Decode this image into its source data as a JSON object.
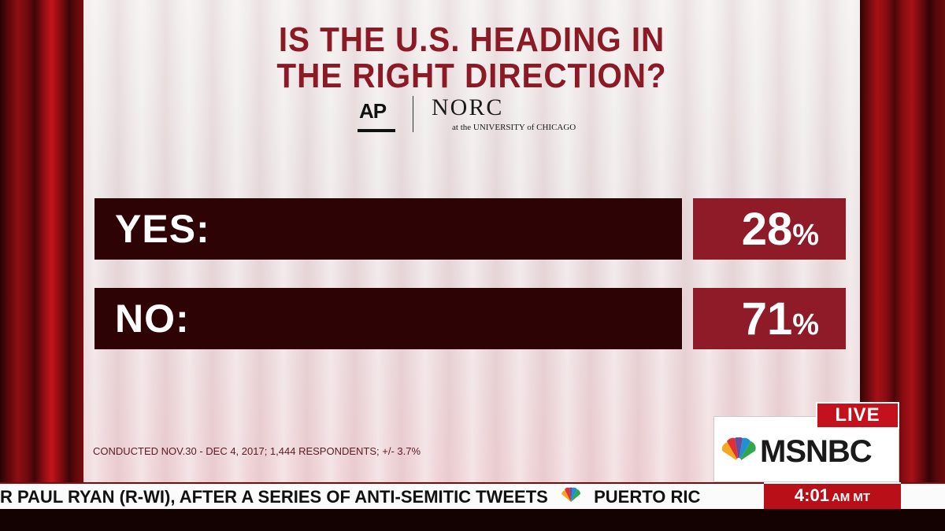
{
  "graphic": {
    "title_line1": "IS THE U.S. HEADING IN",
    "title_line2": "THE RIGHT DIRECTION?",
    "logos": {
      "ap": "AP",
      "norc": "NORC",
      "norc_sub": "at the UNIVERSITY of CHICAGO"
    },
    "results": [
      {
        "label": "YES:",
        "value": "28",
        "unit": "%"
      },
      {
        "label": "NO:",
        "value": "71",
        "unit": "%"
      }
    ],
    "footnote": "CONDUCTED NOV.30 - DEC 4, 2017; 1,444 RESPONDENTS; +/- 3.7%"
  },
  "ticker": {
    "segment1": "R PAUL RYAN (R-WI), AFTER A SERIES OF ANTI-SEMITIC TWEETS",
    "segment2": "PUERTO RIC"
  },
  "bug": {
    "live": "LIVE",
    "network": "MSNBC",
    "time": "4:01",
    "zone": "AM MT"
  },
  "colors": {
    "title": "#8b1a24",
    "label_bar": "#2e0306",
    "value_bar": "#8f1a28",
    "live_red": "#c4121c"
  }
}
